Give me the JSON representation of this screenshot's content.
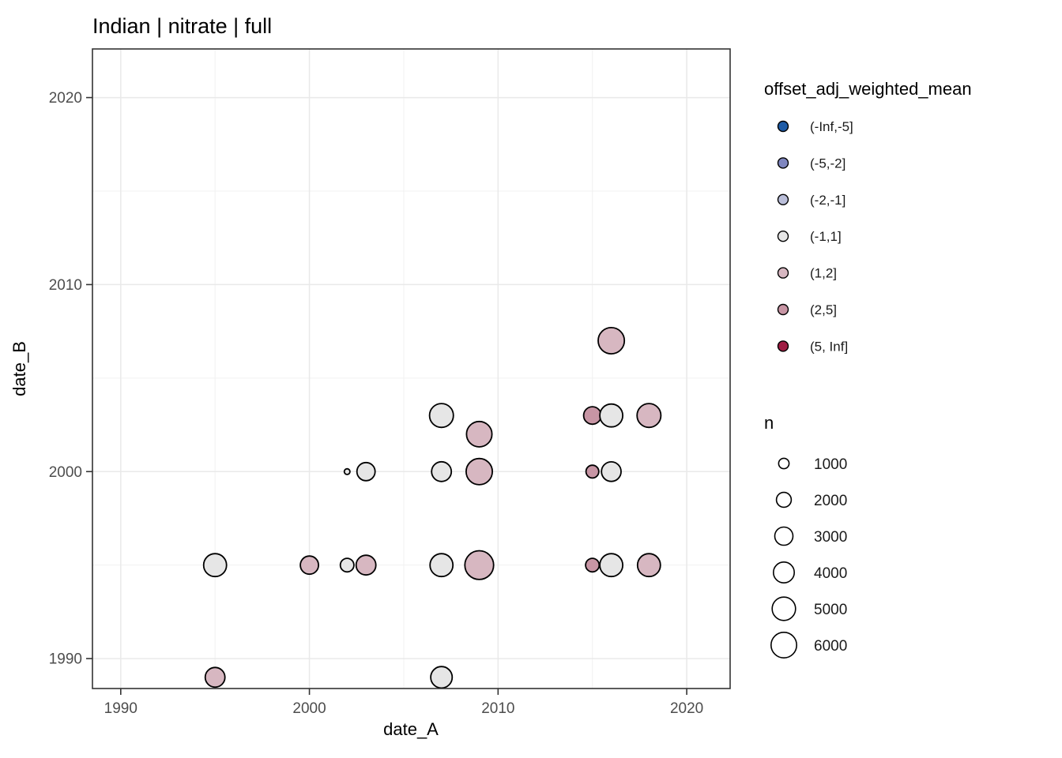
{
  "chart_data": {
    "type": "scatter",
    "title": "Indian | nitrate | full",
    "xlabel": "date_A",
    "ylabel": "date_B",
    "xlim": [
      1988.5,
      2022.3
    ],
    "ylim": [
      1988.4,
      2022.6
    ],
    "x_ticks": [
      1990,
      2000,
      2010,
      2020
    ],
    "y_ticks": [
      1990,
      2000,
      2010,
      2020
    ],
    "x_minor_ticks": [
      1995,
      2005,
      2015
    ],
    "y_minor_ticks": [
      1995,
      2005,
      2015
    ],
    "grid": "on",
    "legend_position": "right",
    "size_variable": "n",
    "color_variable": "offset_adj_weighted_mean",
    "points": [
      {
        "x": 1995,
        "y": 1995,
        "n": 4800,
        "bin": "(-1,1]"
      },
      {
        "x": 2000,
        "y": 1995,
        "n": 3000,
        "bin": "(1,2]"
      },
      {
        "x": 2002,
        "y": 1995,
        "n": 1700,
        "bin": "(-1,1]"
      },
      {
        "x": 2003,
        "y": 1995,
        "n": 3600,
        "bin": "(1,2]"
      },
      {
        "x": 2007,
        "y": 1995,
        "n": 4800,
        "bin": "(-1,1]"
      },
      {
        "x": 2009,
        "y": 1995,
        "n": 7600,
        "bin": "(1,2]"
      },
      {
        "x": 2015,
        "y": 1995,
        "n": 1700,
        "bin": "(2,5]"
      },
      {
        "x": 2016,
        "y": 1995,
        "n": 4800,
        "bin": "(-1,1]"
      },
      {
        "x": 2018,
        "y": 1995,
        "n": 4800,
        "bin": "(1,2]"
      },
      {
        "x": 1995,
        "y": 1989,
        "n": 3600,
        "bin": "(1,2]"
      },
      {
        "x": 2007,
        "y": 1989,
        "n": 4200,
        "bin": "(-1,1]"
      },
      {
        "x": 2002,
        "y": 2000,
        "n": 300,
        "bin": "(-1,1]"
      },
      {
        "x": 2003,
        "y": 2000,
        "n": 3000,
        "bin": "(-1,1]"
      },
      {
        "x": 2007,
        "y": 2000,
        "n": 3600,
        "bin": "(-1,1]"
      },
      {
        "x": 2009,
        "y": 2000,
        "n": 6300,
        "bin": "(1,2]"
      },
      {
        "x": 2015,
        "y": 2000,
        "n": 1500,
        "bin": "(2,5]"
      },
      {
        "x": 2016,
        "y": 2000,
        "n": 3500,
        "bin": "(-1,1]"
      },
      {
        "x": 2007,
        "y": 2003,
        "n": 5200,
        "bin": "(-1,1]"
      },
      {
        "x": 2009,
        "y": 2002,
        "n": 5900,
        "bin": "(1,2]"
      },
      {
        "x": 2015,
        "y": 2003,
        "n": 2800,
        "bin": "(2,5]"
      },
      {
        "x": 2016,
        "y": 2003,
        "n": 4800,
        "bin": "(-1,1]"
      },
      {
        "x": 2018,
        "y": 2003,
        "n": 5200,
        "bin": "(1,2]"
      },
      {
        "x": 2016,
        "y": 2007,
        "n": 6300,
        "bin": "(1,2]"
      }
    ],
    "color_legend": {
      "title": "offset_adj_weighted_mean",
      "entries": [
        {
          "label": "(-Inf,-5]",
          "color": "#1e5ba6"
        },
        {
          "label": "(-5,-2]",
          "color": "#7f86bf"
        },
        {
          "label": "(-2,-1]",
          "color": "#babed9"
        },
        {
          "label": "(-1,1]",
          "color": "#e6e6e6"
        },
        {
          "label": "(1,2]",
          "color": "#d7b7c1"
        },
        {
          "label": "(2,5]",
          "color": "#c795a4"
        },
        {
          "label": "(5, Inf]",
          "color": "#9e1c43"
        }
      ]
    },
    "size_legend": {
      "title": "n",
      "entries": [
        {
          "label": "1000",
          "n": 1000
        },
        {
          "label": "2000",
          "n": 2000
        },
        {
          "label": "3000",
          "n": 3000
        },
        {
          "label": "4000",
          "n": 4000
        },
        {
          "label": "5000",
          "n": 5000
        },
        {
          "label": "6000",
          "n": 6000
        }
      ]
    },
    "colors": {
      "panel_background": "#ffffff",
      "panel_border": "#333333",
      "grid_major": "#e9e9e9",
      "grid_minor": "#f1f1f1",
      "point_stroke": "#000000",
      "tick_label": "#4d4d4d",
      "text": "#000000"
    }
  }
}
